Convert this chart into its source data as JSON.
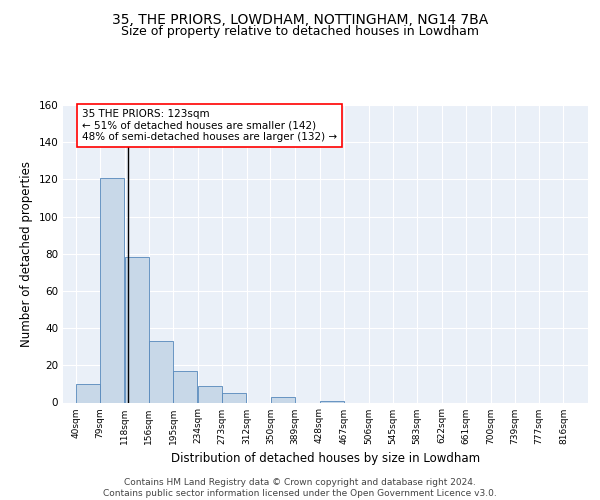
{
  "title": "35, THE PRIORS, LOWDHAM, NOTTINGHAM, NG14 7BA",
  "subtitle": "Size of property relative to detached houses in Lowdham",
  "xlabel": "Distribution of detached houses by size in Lowdham",
  "ylabel": "Number of detached properties",
  "bar_left_edges": [
    40,
    79,
    118,
    156,
    195,
    234,
    273,
    312,
    350,
    389,
    428,
    467,
    506,
    545,
    583,
    622,
    661,
    700,
    739,
    777
  ],
  "bar_heights": [
    10,
    121,
    78,
    33,
    17,
    9,
    5,
    0,
    3,
    0,
    1,
    0,
    0,
    0,
    0,
    0,
    0,
    0,
    0,
    0
  ],
  "bin_width": 39,
  "tick_labels": [
    "40sqm",
    "79sqm",
    "118sqm",
    "156sqm",
    "195sqm",
    "234sqm",
    "273sqm",
    "312sqm",
    "350sqm",
    "389sqm",
    "428sqm",
    "467sqm",
    "506sqm",
    "545sqm",
    "583sqm",
    "622sqm",
    "661sqm",
    "700sqm",
    "739sqm",
    "777sqm",
    "816sqm"
  ],
  "bar_color": "#c8d8e8",
  "bar_edge_color": "#5588bb",
  "vline_x": 123,
  "vline_color": "black",
  "annotation_line1": "35 THE PRIORS: 123sqm",
  "annotation_line2": "← 51% of detached houses are smaller (142)",
  "annotation_line3": "48% of semi-detached houses are larger (132) →",
  "annotation_box_color": "white",
  "annotation_box_edge_color": "red",
  "ylim": [
    0,
    160
  ],
  "yticks": [
    0,
    20,
    40,
    60,
    80,
    100,
    120,
    140,
    160
  ],
  "xlim_left": 20,
  "xlim_right": 855,
  "plot_bg_color": "#eaf0f8",
  "grid_color": "white",
  "footer_text": "Contains HM Land Registry data © Crown copyright and database right 2024.\nContains public sector information licensed under the Open Government Licence v3.0.",
  "title_fontsize": 10,
  "subtitle_fontsize": 9,
  "xlabel_fontsize": 8.5,
  "ylabel_fontsize": 8.5,
  "tick_fontsize": 6.5,
  "annotation_fontsize": 7.5,
  "footer_fontsize": 6.5
}
